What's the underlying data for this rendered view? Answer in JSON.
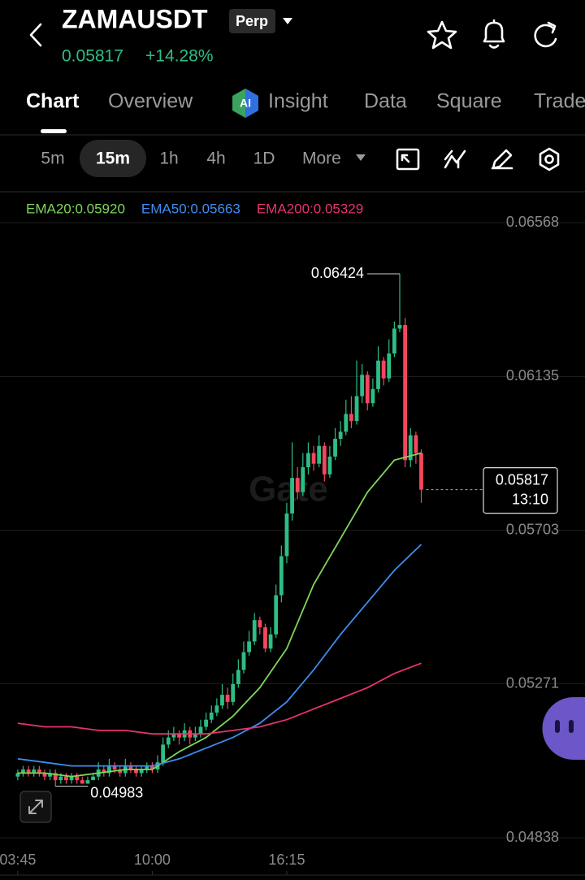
{
  "header": {
    "title": "ZAMAUSDT",
    "badge": "Perp",
    "change": "+14.28%"
  },
  "tabs": [
    "Chart",
    "Overview",
    "Insight",
    "Data",
    "Square",
    "Trade"
  ],
  "intervals": [
    "5m",
    "15m",
    "1h",
    "4h",
    "1D",
    "More"
  ],
  "chart_data": {
    "type": "candlestick",
    "watermark": "Gate",
    "countdown": "13:10",
    "up_color": "#2ebd85",
    "down_color": "#f6465d",
    "grid": true,
    "xlim": [
      -3.3,
      85.8
    ],
    "xticks": [
      {
        "value": 0,
        "label": "03:45"
      },
      {
        "value": 25,
        "label": "10:00"
      },
      {
        "value": 50,
        "label": "16:15"
      }
    ],
    "ylim": [
      0.04838,
      0.06568
    ],
    "yticks": [
      0.06568,
      0.06135,
      0.05703,
      0.05271,
      0.04838
    ],
    "x": [
      0,
      1,
      2,
      3,
      4,
      5,
      6,
      7,
      8,
      9,
      10,
      11,
      12,
      13,
      14,
      15,
      16,
      17,
      18,
      19,
      20,
      21,
      22,
      23,
      24,
      25,
      26,
      27,
      28,
      29,
      30,
      31,
      32,
      33,
      34,
      35,
      36,
      37,
      38,
      39,
      40,
      41,
      42,
      43,
      44,
      45,
      46,
      47,
      48,
      49,
      50,
      51,
      52,
      53,
      54,
      55,
      56,
      57,
      58,
      59,
      60,
      61,
      62,
      63,
      64,
      65,
      66,
      67,
      68,
      69,
      70,
      71,
      72,
      73,
      74,
      75
    ],
    "open": [
      0.0501,
      0.0502,
      0.0503,
      0.0502,
      0.0503,
      0.0502,
      0.0501,
      0.0502,
      0.05,
      0.0501,
      0.05,
      0.0501,
      0.05,
      0.0499,
      0.05,
      0.0501,
      0.0503,
      0.0502,
      0.0504,
      0.0503,
      0.0502,
      0.0504,
      0.0503,
      0.0502,
      0.0503,
      0.0504,
      0.0503,
      0.0505,
      0.051,
      0.0512,
      0.0513,
      0.0512,
      0.0514,
      0.0512,
      0.0513,
      0.0515,
      0.0517,
      0.0519,
      0.0521,
      0.0524,
      0.0522,
      0.0527,
      0.0531,
      0.0536,
      0.0539,
      0.0545,
      0.0543,
      0.0537,
      0.0541,
      0.0552,
      0.0563,
      0.0575,
      0.0585,
      0.0581,
      0.0588,
      0.0592,
      0.0589,
      0.0594,
      0.0586,
      0.0591,
      0.0596,
      0.0598,
      0.0603,
      0.0601,
      0.0608,
      0.0614,
      0.0606,
      0.061,
      0.0618,
      0.0613,
      0.062,
      0.0627,
      0.0628,
      0.059,
      0.0597,
      0.0592
    ],
    "high": [
      0.0503,
      0.0504,
      0.0504,
      0.0504,
      0.0504,
      0.0503,
      0.0503,
      0.0503,
      0.0502,
      0.0502,
      0.0502,
      0.0502,
      0.0501,
      0.0501,
      0.0502,
      0.0505,
      0.0504,
      0.0506,
      0.0505,
      0.0504,
      0.0506,
      0.0505,
      0.0504,
      0.0504,
      0.0505,
      0.0505,
      0.0507,
      0.0512,
      0.0514,
      0.0515,
      0.0514,
      0.0516,
      0.0515,
      0.0515,
      0.0517,
      0.0519,
      0.0521,
      0.0523,
      0.0527,
      0.0526,
      0.053,
      0.0534,
      0.0539,
      0.0542,
      0.0547,
      0.0546,
      0.0544,
      0.0543,
      0.0555,
      0.0566,
      0.0578,
      0.0595,
      0.0588,
      0.0592,
      0.0595,
      0.0594,
      0.0597,
      0.0595,
      0.0594,
      0.0599,
      0.0601,
      0.0607,
      0.0608,
      0.0618,
      0.0617,
      0.0615,
      0.0613,
      0.0622,
      0.0619,
      0.0624,
      0.0629,
      0.06424,
      0.063,
      0.0599,
      0.0598,
      0.0593
    ],
    "low": [
      0.05,
      0.0501,
      0.0501,
      0.0501,
      0.0501,
      0.05,
      0.05,
      0.04983,
      0.0499,
      0.0499,
      0.0499,
      0.0499,
      0.0499,
      0.0499,
      0.05,
      0.05,
      0.0501,
      0.0501,
      0.0502,
      0.0501,
      0.0501,
      0.0502,
      0.0501,
      0.0501,
      0.0502,
      0.0502,
      0.0502,
      0.0504,
      0.0509,
      0.0511,
      0.051,
      0.0511,
      0.051,
      0.0511,
      0.0512,
      0.0514,
      0.0516,
      0.0518,
      0.052,
      0.052,
      0.0521,
      0.0526,
      0.053,
      0.0535,
      0.0538,
      0.0541,
      0.0536,
      0.0536,
      0.054,
      0.055,
      0.0561,
      0.0573,
      0.0579,
      0.058,
      0.0586,
      0.0587,
      0.0588,
      0.0584,
      0.0585,
      0.059,
      0.0594,
      0.0597,
      0.0599,
      0.06,
      0.0606,
      0.0604,
      0.0605,
      0.0609,
      0.0611,
      0.0612,
      0.0619,
      0.0626,
      0.0588,
      0.0588,
      0.0589,
      0.0578
    ],
    "close": [
      0.0502,
      0.0503,
      0.0502,
      0.0503,
      0.0502,
      0.0501,
      0.0502,
      0.05,
      0.0501,
      0.05,
      0.0501,
      0.05,
      0.0499,
      0.05,
      0.0501,
      0.0503,
      0.0502,
      0.0504,
      0.0503,
      0.0502,
      0.0504,
      0.0503,
      0.0502,
      0.0503,
      0.0504,
      0.0503,
      0.0505,
      0.051,
      0.0512,
      0.0513,
      0.0512,
      0.0514,
      0.0512,
      0.0513,
      0.0515,
      0.0517,
      0.0519,
      0.0521,
      0.0524,
      0.0522,
      0.0527,
      0.0531,
      0.0536,
      0.0539,
      0.0545,
      0.0543,
      0.0537,
      0.0541,
      0.0552,
      0.0563,
      0.0575,
      0.0585,
      0.0581,
      0.0588,
      0.0592,
      0.0589,
      0.0594,
      0.0586,
      0.0591,
      0.0596,
      0.0598,
      0.0603,
      0.0601,
      0.0608,
      0.0614,
      0.0606,
      0.061,
      0.0618,
      0.0613,
      0.062,
      0.0627,
      0.0628,
      0.059,
      0.0597,
      0.0592,
      0.05817
    ],
    "series": [
      {
        "name": "EMA20:0.05920",
        "color": "#7fd65a",
        "x": [
          0,
          5,
          10,
          15,
          20,
          25,
          30,
          35,
          40,
          45,
          50,
          55,
          60,
          65,
          70,
          75
        ],
        "values": [
          0.0502,
          0.0502,
          0.0501,
          0.0502,
          0.0503,
          0.0503,
          0.0508,
          0.0512,
          0.0518,
          0.0526,
          0.0537,
          0.0555,
          0.0568,
          0.0581,
          0.059,
          0.0592
        ]
      },
      {
        "name": "EMA50:0.05663",
        "color": "#3d8ef0",
        "x": [
          0,
          5,
          10,
          15,
          20,
          25,
          30,
          35,
          40,
          45,
          50,
          55,
          60,
          65,
          70,
          75
        ],
        "values": [
          0.0506,
          0.0505,
          0.0504,
          0.0504,
          0.0504,
          0.0504,
          0.0506,
          0.0509,
          0.0512,
          0.0516,
          0.0522,
          0.0531,
          0.0541,
          0.055,
          0.0559,
          0.05663
        ]
      },
      {
        "name": "EMA200:0.05329",
        "color": "#e6336f",
        "x": [
          0,
          5,
          10,
          15,
          20,
          25,
          30,
          35,
          40,
          45,
          50,
          55,
          60,
          65,
          70,
          75
        ],
        "values": [
          0.0516,
          0.0515,
          0.0515,
          0.0514,
          0.0514,
          0.0513,
          0.0513,
          0.0513,
          0.0514,
          0.0515,
          0.0517,
          0.052,
          0.0523,
          0.0526,
          0.053,
          0.05329
        ]
      }
    ]
  }
}
